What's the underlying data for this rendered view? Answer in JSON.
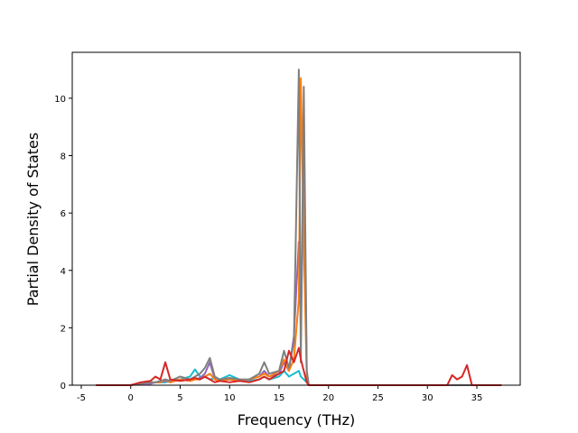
{
  "chart_data": {
    "type": "line",
    "x_label": "Frequency (THz)",
    "y_label": "Partial Density of States",
    "xlim": [
      -5.91,
      39.38
    ],
    "ylim": [
      0,
      11.6
    ],
    "xticks": [
      -5,
      0,
      5,
      10,
      15,
      20,
      25,
      30,
      35
    ],
    "yticks": [
      0,
      2,
      4,
      6,
      8,
      10
    ],
    "x": [
      -3.5,
      0,
      1,
      2,
      2.5,
      3,
      3.5,
      4,
      5,
      6,
      6.5,
      7,
      7.5,
      8,
      8.5,
      9,
      10,
      11,
      12,
      13,
      13.5,
      14,
      15,
      15.5,
      16,
      16.5,
      17,
      17.2,
      17.5,
      17.8,
      18,
      20,
      30,
      32,
      32.5,
      33,
      33.5,
      34,
      34.5,
      37.5
    ],
    "series": [
      {
        "color": "#17becf",
        "values": [
          0,
          0,
          0.05,
          0.1,
          0.1,
          0.1,
          0.1,
          0.15,
          0.2,
          0.3,
          0.55,
          0.3,
          0.3,
          0.2,
          0.25,
          0.2,
          0.35,
          0.2,
          0.15,
          0.2,
          0.3,
          0.2,
          0.3,
          0.5,
          0.3,
          0.4,
          0.5,
          0.3,
          0.2,
          0.1,
          0,
          0,
          0,
          0,
          0,
          0,
          0,
          0,
          0,
          0
        ]
      },
      {
        "color": "#9467bd",
        "values": [
          0,
          0,
          0.05,
          0.05,
          0.1,
          0.1,
          0.15,
          0.1,
          0.2,
          0.15,
          0.2,
          0.25,
          0.4,
          0.8,
          0.2,
          0.15,
          0.2,
          0.15,
          0.2,
          0.3,
          0.5,
          0.3,
          0.4,
          0.8,
          0.5,
          1.7,
          5.0,
          2.0,
          7.3,
          0.5,
          0,
          0,
          0,
          0,
          0,
          0,
          0,
          0,
          0,
          0
        ]
      },
      {
        "color": "#ff7f0e",
        "values": [
          0,
          0,
          0.05,
          0.1,
          0.1,
          0.1,
          0.2,
          0.1,
          0.2,
          0.15,
          0.2,
          0.2,
          0.3,
          0.4,
          0.2,
          0.15,
          0.2,
          0.15,
          0.2,
          0.3,
          0.4,
          0.3,
          0.5,
          0.9,
          0.5,
          0.9,
          3.0,
          10.7,
          5.0,
          0.3,
          0,
          0,
          0,
          0,
          0,
          0,
          0,
          0,
          0,
          0
        ]
      },
      {
        "color": "#7f7f7f",
        "values": [
          0,
          0,
          0.05,
          0.1,
          0.1,
          0.15,
          0.2,
          0.15,
          0.3,
          0.2,
          0.3,
          0.4,
          0.6,
          0.95,
          0.3,
          0.2,
          0.25,
          0.2,
          0.2,
          0.4,
          0.8,
          0.4,
          0.5,
          1.2,
          0.6,
          1.5,
          11.0,
          0.8,
          10.4,
          0.5,
          0,
          0,
          0,
          0,
          0,
          0,
          0,
          0,
          0,
          0
        ]
      },
      {
        "color": "#d62728",
        "values": [
          0,
          0,
          0.1,
          0.15,
          0.3,
          0.2,
          0.8,
          0.2,
          0.15,
          0.2,
          0.25,
          0.2,
          0.3,
          0.2,
          0.1,
          0.15,
          0.1,
          0.15,
          0.1,
          0.2,
          0.3,
          0.2,
          0.4,
          0.5,
          1.2,
          0.8,
          1.3,
          0.9,
          0.5,
          0.1,
          0,
          0,
          0,
          0,
          0.35,
          0.2,
          0.3,
          0.7,
          0,
          0
        ]
      }
    ]
  }
}
